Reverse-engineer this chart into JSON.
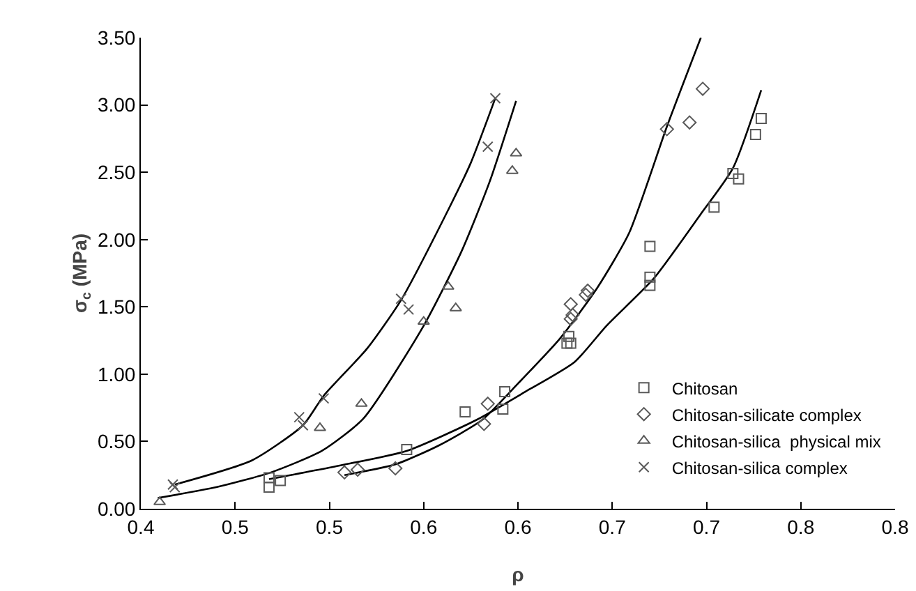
{
  "chart_data": {
    "type": "scatter",
    "xlabel": "ρ",
    "ylabel": "σ$_{c}$ (MPa)",
    "xlim": [
      0.4,
      0.8
    ],
    "ylim": [
      0,
      3.5
    ],
    "xticks": [
      {
        "value": 0.4,
        "label": "0.4"
      },
      {
        "value": 0.45,
        "label": "0.5"
      },
      {
        "value": 0.5,
        "label": "0.5"
      },
      {
        "value": 0.55,
        "label": "0.6"
      },
      {
        "value": 0.6,
        "label": "0.6"
      },
      {
        "value": 0.65,
        "label": "0.7"
      },
      {
        "value": 0.7,
        "label": "0.7"
      },
      {
        "value": 0.75,
        "label": "0.8"
      },
      {
        "value": 0.8,
        "label": "0.8"
      }
    ],
    "yticks": [
      {
        "value": 0,
        "label": "0.00"
      },
      {
        "value": 0.5,
        "label": "0.50"
      },
      {
        "value": 1,
        "label": "1.00"
      },
      {
        "value": 1.5,
        "label": "1.50"
      },
      {
        "value": 2,
        "label": "2.00"
      },
      {
        "value": 2.5,
        "label": "2.50"
      },
      {
        "value": 3,
        "label": "3.00"
      },
      {
        "value": 3.5,
        "label": "3.50"
      }
    ],
    "grid": false,
    "legend": "bottom right",
    "series": [
      {
        "name": "Chitosan",
        "color": "#595959",
        "marker": "square",
        "x": [
          0.468,
          0.468,
          0.474,
          0.541,
          0.572,
          0.592,
          0.593,
          0.626,
          0.628,
          0.627,
          0.67,
          0.67,
          0.67,
          0.704,
          0.714,
          0.717,
          0.726,
          0.729
        ],
        "values": [
          0.23,
          0.16,
          0.21,
          0.44,
          0.72,
          0.74,
          0.87,
          1.23,
          1.23,
          1.28,
          1.66,
          1.72,
          1.95,
          2.24,
          2.49,
          2.45,
          2.78,
          2.9
        ]
      },
      {
        "name": "Chitosan-silicate complex",
        "color": "#595959",
        "marker": "diamond",
        "x": [
          0.508,
          0.515,
          0.535,
          0.582,
          0.584,
          0.628,
          0.629,
          0.628,
          0.636,
          0.637,
          0.679,
          0.691,
          0.698
        ],
        "values": [
          0.27,
          0.29,
          0.3,
          0.63,
          0.78,
          1.41,
          1.44,
          1.52,
          1.59,
          1.62,
          2.82,
          2.87,
          3.12
        ]
      },
      {
        "name": "Chitosan-silica  physical mix",
        "color": "#595959",
        "marker": "triangle",
        "x": [
          0.41,
          0.495,
          0.517,
          0.55,
          0.563,
          0.567,
          0.597,
          0.599
        ],
        "values": [
          0.05,
          0.6,
          0.78,
          1.39,
          1.65,
          1.49,
          2.51,
          2.64
        ]
      },
      {
        "name": "Chitosan-silica complex",
        "color": "#595959",
        "marker": "cross",
        "x": [
          0.417,
          0.418,
          0.484,
          0.486,
          0.497,
          0.538,
          0.542,
          0.584,
          0.588
        ],
        "values": [
          0.18,
          0.16,
          0.68,
          0.62,
          0.82,
          1.56,
          1.48,
          2.69,
          3.05
        ]
      },
      {
        "type": "line",
        "color": "#000000",
        "marker": "none",
        "x": [
          0.418,
          0.459,
          0.486,
          0.497,
          0.52,
          0.538,
          0.563,
          0.575,
          0.588
        ],
        "values": [
          0.18,
          0.36,
          0.62,
          0.84,
          1.19,
          1.55,
          2.22,
          2.57,
          3.05
        ]
      },
      {
        "type": "line",
        "color": "#000000",
        "marker": "none",
        "x": [
          0.409,
          0.44,
          0.469,
          0.496,
          0.518,
          0.55,
          0.57,
          0.585,
          0.599
        ],
        "values": [
          0.08,
          0.16,
          0.27,
          0.43,
          0.67,
          1.36,
          1.91,
          2.43,
          3.03
        ]
      },
      {
        "type": "line",
        "color": "#000000",
        "marker": "none",
        "x": [
          0.508,
          0.535,
          0.558,
          0.581,
          0.6,
          0.622,
          0.642,
          0.659,
          0.679,
          0.697
        ],
        "values": [
          0.25,
          0.33,
          0.47,
          0.66,
          0.93,
          1.26,
          1.64,
          2.05,
          2.84,
          3.5
        ]
      },
      {
        "type": "line",
        "color": "#000000",
        "marker": "none",
        "x": [
          0.468,
          0.505,
          0.541,
          0.578,
          0.604,
          0.63,
          0.647,
          0.672,
          0.697,
          0.714,
          0.729
        ],
        "values": [
          0.22,
          0.32,
          0.43,
          0.66,
          0.87,
          1.09,
          1.36,
          1.71,
          2.19,
          2.53,
          3.11
        ]
      }
    ]
  }
}
